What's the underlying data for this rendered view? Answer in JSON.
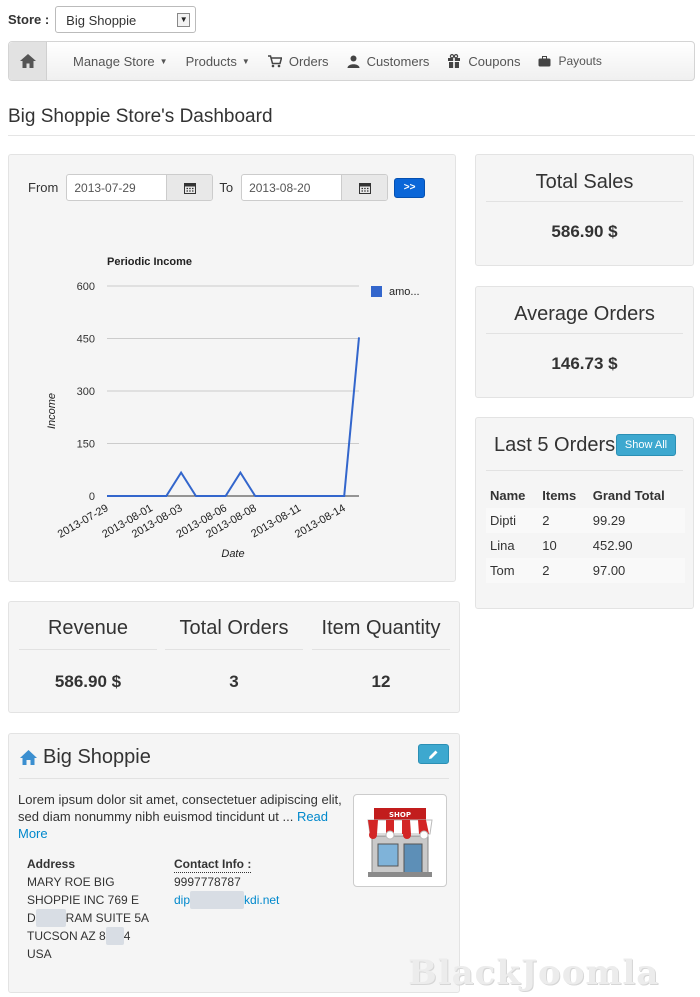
{
  "store": {
    "label": "Store :",
    "selected": "Big Shoppie"
  },
  "nav": {
    "items": [
      {
        "label": "Manage Store",
        "dropdown": true,
        "icon": ""
      },
      {
        "label": "Products",
        "dropdown": true,
        "icon": ""
      },
      {
        "label": "Orders",
        "dropdown": false,
        "icon": "cart-icon"
      },
      {
        "label": "Customers",
        "dropdown": false,
        "icon": "user-icon"
      },
      {
        "label": "Coupons",
        "dropdown": false,
        "icon": "gift-icon"
      },
      {
        "label": "Payouts",
        "dropdown": false,
        "icon": "briefcase-icon"
      }
    ]
  },
  "page": {
    "title": "Big Shoppie Store's Dashboard"
  },
  "filter": {
    "from_label": "From",
    "from": "2013-07-29",
    "to_label": "To",
    "to": "2013-08-20",
    "go_label": ">>"
  },
  "chart_data": {
    "type": "line",
    "title": "Periodic Income",
    "xlabel": "Date",
    "ylabel": "Income",
    "ylim": [
      0,
      600
    ],
    "yticks": [
      0,
      150,
      300,
      450,
      600
    ],
    "x_tick_labels": [
      "2013-07-29",
      "2013-08-01",
      "2013-08-03",
      "2013-08-06",
      "2013-08-08",
      "2013-08-11",
      "2013-08-14"
    ],
    "x": [
      "2013-07-29",
      "2013-07-30",
      "2013-07-31",
      "2013-08-01",
      "2013-08-02",
      "2013-08-03",
      "2013-08-04",
      "2013-08-05",
      "2013-08-06",
      "2013-08-07",
      "2013-08-08",
      "2013-08-09",
      "2013-08-10",
      "2013-08-11",
      "2013-08-12",
      "2013-08-13",
      "2013-08-14",
      "2013-08-15"
    ],
    "series": [
      {
        "name": "amo...",
        "color": "#3366cc",
        "values": [
          0,
          0,
          0,
          0,
          0,
          67,
          0,
          0,
          0,
          67,
          0,
          0,
          0,
          0,
          0,
          0,
          0,
          453
        ]
      }
    ],
    "legend": "top-right",
    "grid": true
  },
  "stats": {
    "total_sales": {
      "title": "Total Sales",
      "value": "586.90  $"
    },
    "average_orders": {
      "title": "Average Orders",
      "value": "146.73  $"
    }
  },
  "last_orders": {
    "title": "Last 5 Orders",
    "button": "Show All",
    "columns": [
      "Name",
      "Items",
      "Grand Total"
    ],
    "rows": [
      [
        "Dipti",
        "2",
        "99.29"
      ],
      [
        "Lina",
        "10",
        "452.90"
      ],
      [
        "Tom",
        "2",
        "97.00"
      ]
    ]
  },
  "summary": {
    "revenue": {
      "title": "Revenue",
      "value": "586.90  $"
    },
    "orders": {
      "title": "Total Orders",
      "value": "3"
    },
    "quantity": {
      "title": "Item Quantity",
      "value": "12"
    }
  },
  "shop": {
    "name": "Big Shoppie",
    "description": "Lorem ipsum dolor sit amet, consectetuer adipiscing elit, sed diam nonummy nibh euismod tincidunt ut ...",
    "read_more": "Read More",
    "address_label": "Address",
    "address_lines": [
      "MARY ROE BIG",
      "SHOPPIE INC 769 E",
      "D",
      "RAM SUITE 5A",
      "TUCSON AZ 8",
      "4",
      "USA"
    ],
    "contact_label": "Contact Info :",
    "phone": "9997778787",
    "email_start": "dip",
    "email_end": "kdi.net"
  },
  "watermark": "BlackJoomla",
  "colors": {
    "primary": "#0a66d8",
    "info": "#3da8cf",
    "line": "#3366cc",
    "well": "#f5f5f5"
  }
}
